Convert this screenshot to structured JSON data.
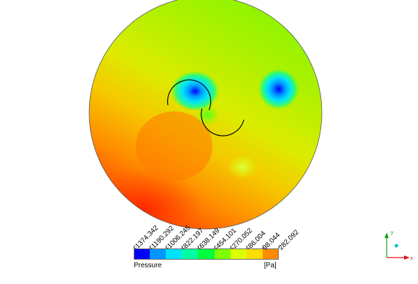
{
  "legend": {
    "title": "Pressure",
    "unit": "[Pa]",
    "ticks": [
      "-1374.342",
      "-1190.292",
      "-1006.245",
      "-822.197",
      "-638.149",
      "-454.101",
      "-270.052",
      "-86.004",
      "98.044",
      "282.092"
    ],
    "colors": [
      "#0000ff",
      "#0096ff",
      "#00e1ff",
      "#00ffa0",
      "#00ff3c",
      "#7dff00",
      "#dcff00",
      "#ffdc00",
      "#ff8c00"
    ]
  },
  "triad": {
    "x_label": "x",
    "y_label": "y",
    "x_color": "#e01010",
    "y_color": "#10a010",
    "z_color": "#00c0c0"
  }
}
